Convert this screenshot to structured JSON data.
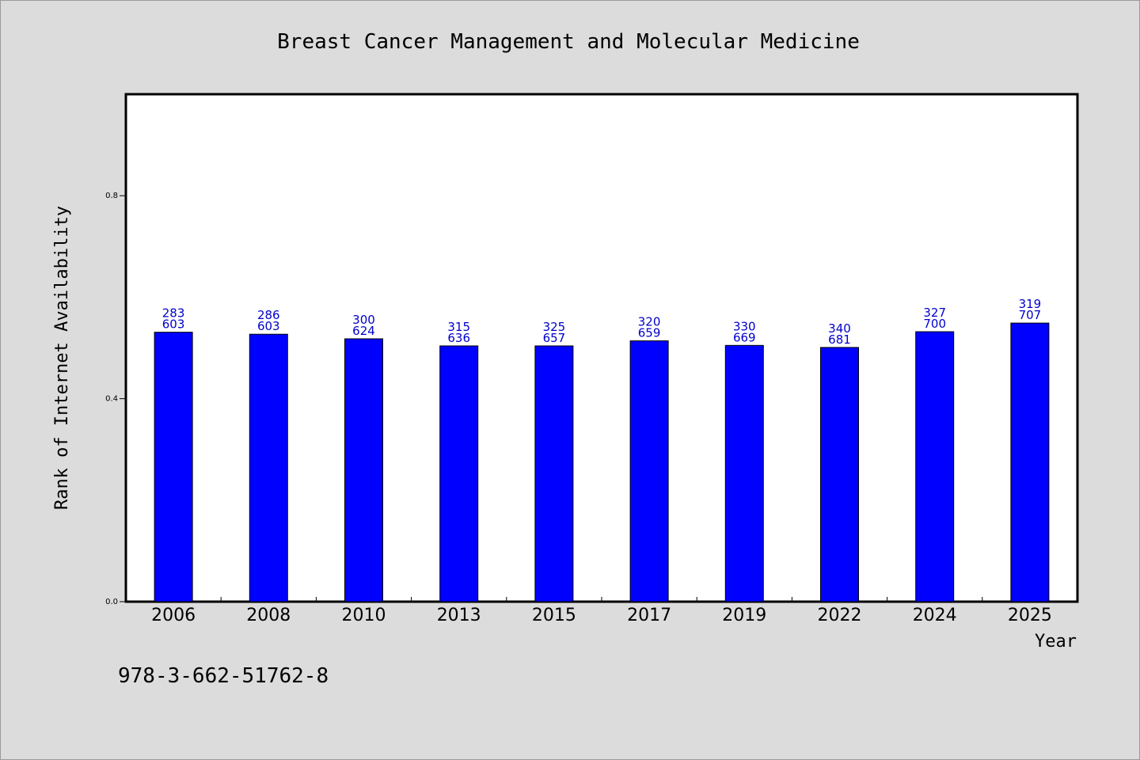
{
  "chart_data": {
    "type": "bar",
    "title": "Breast Cancer Management and Molecular Medicine",
    "xlabel": "Year",
    "ylabel": "Rank of Internet Availability",
    "ylim": [
      0,
      1.0
    ],
    "yticks": [
      0.0,
      0.4,
      0.8
    ],
    "ytick_labels": [
      "0.0",
      "0.4",
      "0.8"
    ],
    "categories": [
      "2006",
      "2008",
      "2010",
      "2013",
      "2015",
      "2017",
      "2019",
      "2022",
      "2024",
      "2025"
    ],
    "values": [
      0.531,
      0.527,
      0.518,
      0.504,
      0.504,
      0.514,
      0.505,
      0.501,
      0.532,
      0.549
    ],
    "bar_labels_top": [
      "283",
      "286",
      "300",
      "315",
      "325",
      "320",
      "330",
      "340",
      "327",
      "319"
    ],
    "bar_labels_bottom": [
      "603",
      "603",
      "624",
      "636",
      "657",
      "659",
      "669",
      "681",
      "700",
      "707"
    ],
    "bar_color": "#0000ff",
    "label_color": "#0000cc",
    "grid": false,
    "legend": "none"
  },
  "footer": {
    "isbn": "978-3-662-51762-8"
  }
}
